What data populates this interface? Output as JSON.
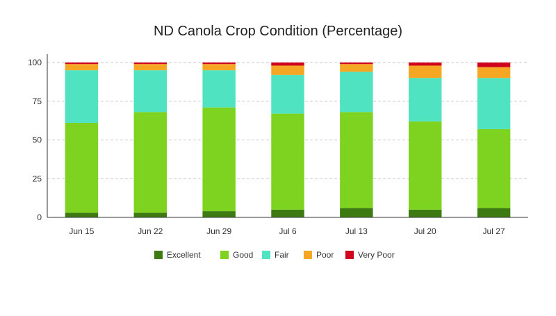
{
  "chart_data": {
    "type": "bar",
    "stacked": true,
    "title": "ND Canola Crop Condition (Percentage)",
    "xlabel": "",
    "ylabel": "",
    "ylim": [
      0,
      100
    ],
    "yticks": [
      "0",
      "25",
      "50",
      "75",
      "100"
    ],
    "grid": true,
    "legend_position": "bottom",
    "categories": [
      "Jun 15",
      "Jun 22",
      "Jun 29",
      "Jul 6",
      "Jul 13",
      "Jul 20",
      "Jul 27"
    ],
    "series": [
      {
        "name": "Excellent",
        "color": "#3d7a12",
        "values": [
          3,
          3,
          4,
          5,
          6,
          5,
          6
        ]
      },
      {
        "name": "Good",
        "color": "#7ed321",
        "values": [
          58,
          65,
          67,
          62,
          62,
          57,
          51
        ]
      },
      {
        "name": "Fair",
        "color": "#50e3c2",
        "values": [
          34,
          27,
          24,
          25,
          26,
          28,
          33
        ]
      },
      {
        "name": "Poor",
        "color": "#f5a623",
        "values": [
          4,
          4,
          4,
          6,
          5,
          8,
          7
        ]
      },
      {
        "name": "Very Poor",
        "color": "#d0021b",
        "values": [
          1,
          1,
          1,
          2,
          1,
          2,
          3
        ]
      }
    ]
  }
}
